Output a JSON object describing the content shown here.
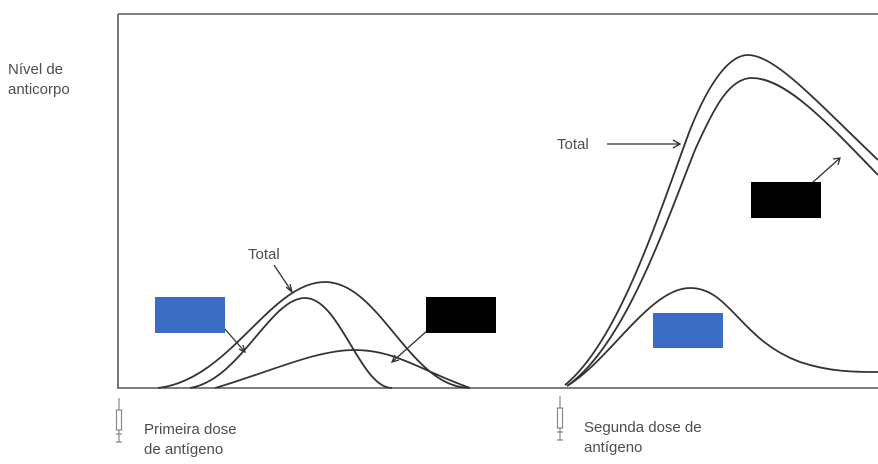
{
  "y_axis": {
    "label_line1": "Nível de",
    "label_line2": "anticorpo"
  },
  "annotations": {
    "total_first": "Total",
    "total_second": "Total"
  },
  "doses": {
    "first": {
      "line1": "Primeira dose",
      "line2": "de antígeno"
    },
    "second": {
      "line1": "Segunda dose de",
      "line2": "antígeno"
    }
  },
  "colors": {
    "label_box_blue": "#3d6cc4",
    "label_box_black": "#000000",
    "curve": "#333333",
    "frame": "#555555"
  },
  "icons": [
    "syringe-icon",
    "syringe-icon"
  ]
}
